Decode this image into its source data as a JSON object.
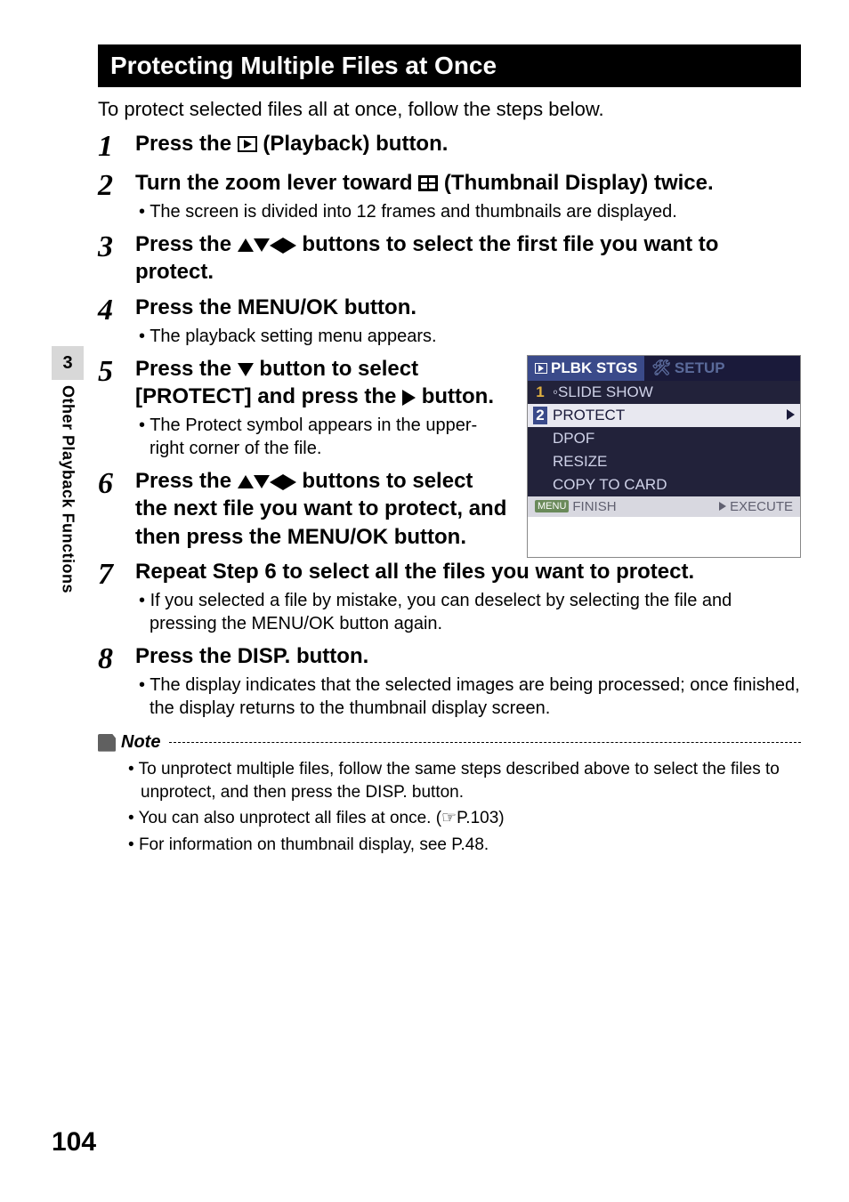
{
  "page_number": "104",
  "side_tab": {
    "num": "3",
    "label": "Other Playback Functions"
  },
  "heading": "Protecting Multiple Files at Once",
  "intro": "To protect selected files all at once, follow the steps below.",
  "steps": {
    "s1": {
      "num": "1",
      "title_pre": "Press the ",
      "title_post": " (Playback) button."
    },
    "s2": {
      "num": "2",
      "title_pre": "Turn the zoom lever toward ",
      "title_post": " (Thumbnail Display) twice.",
      "bullet": "The screen is divided into 12 frames and thumbnails are displayed."
    },
    "s3": {
      "num": "3",
      "title_pre": "Press the ",
      "title_post": " buttons to select the first file you want to protect."
    },
    "s4": {
      "num": "4",
      "title": "Press the MENU/OK button.",
      "bullet": "The playback setting menu appears."
    },
    "s5": {
      "num": "5",
      "title_a": "Press the ",
      "title_b": " button to select [PROTECT] and press the ",
      "title_c": " button.",
      "bullet": "The Protect symbol appears in the upper-right corner of the file."
    },
    "s6": {
      "num": "6",
      "title_pre": "Press the ",
      "title_post": " buttons to select the next file you want to protect, and then press the MENU/OK button."
    },
    "s7": {
      "num": "7",
      "title": "Repeat Step 6 to select all the files you want to protect.",
      "bullet": "If you selected a file by mistake, you can deselect by selecting the file and pressing the MENU/OK button again."
    },
    "s8": {
      "num": "8",
      "title": "Press the DISP. button.",
      "bullet": "The display indicates that the selected images are being processed; once finished, the display returns to the thumbnail display screen."
    }
  },
  "menu": {
    "tab_active": "PLBK STGS",
    "tab_inactive": "SETUP",
    "items": [
      {
        "idx": "1",
        "label": "SLIDE SHOW",
        "sel": false
      },
      {
        "idx": "2",
        "label": "PROTECT",
        "sel": true
      },
      {
        "idx": "",
        "label": "DPOF",
        "sel": false
      },
      {
        "idx": "",
        "label": "RESIZE",
        "sel": false
      },
      {
        "idx": "",
        "label": "COPY TO CARD",
        "sel": false
      }
    ],
    "footer_left": "FINISH",
    "footer_menu_tag": "MENU",
    "footer_right": "EXECUTE"
  },
  "note": {
    "label": "Note",
    "bullets": [
      "To unprotect multiple files, follow the same steps described above to select the files to unprotect, and then press the DISP. button.",
      "You can also unprotect all files at once. (☞P.103)",
      "For information on thumbnail display, see P.48."
    ]
  }
}
